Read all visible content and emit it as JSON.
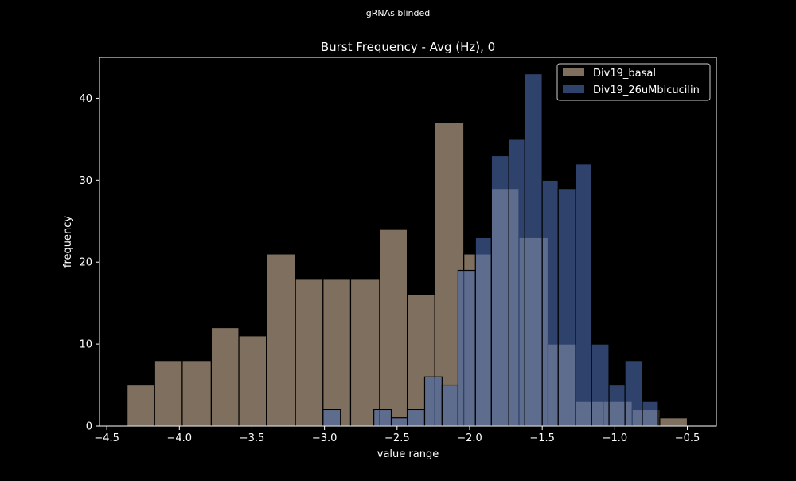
{
  "suptitle": "gRNAs blinded",
  "chart_data": {
    "type": "bar",
    "title": "Burst Frequency - Avg (Hz), 0",
    "xlabel": "value range",
    "ylabel": "frequency",
    "xlim": [
      -4.55,
      -0.3
    ],
    "ylim": [
      0,
      45
    ],
    "xticks": [
      -4.5,
      -4.0,
      -3.5,
      -3.0,
      -2.5,
      -2.0,
      -1.5,
      -1.0,
      -0.5
    ],
    "xtick_labels": [
      "−4.5",
      "−4.0",
      "−3.5",
      "−3.0",
      "−2.5",
      "−2.0",
      "−1.5",
      "−1.0",
      "−0.5"
    ],
    "yticks": [
      0,
      10,
      20,
      30,
      40
    ],
    "ytick_labels": [
      "0",
      "10",
      "20",
      "30",
      "40"
    ],
    "grid": false,
    "legend_position": "top-right",
    "series": [
      {
        "name": "Div19_basal",
        "color": "#8a7866",
        "opacity": 0.92,
        "bins": [
          {
            "x0": -4.36,
            "x1": -4.17,
            "count": 5
          },
          {
            "x0": -4.17,
            "x1": -3.98,
            "count": 8
          },
          {
            "x0": -3.98,
            "x1": -3.78,
            "count": 8
          },
          {
            "x0": -3.78,
            "x1": -3.59,
            "count": 12
          },
          {
            "x0": -3.59,
            "x1": -3.4,
            "count": 11
          },
          {
            "x0": -3.4,
            "x1": -3.2,
            "count": 21
          },
          {
            "x0": -3.2,
            "x1": -3.01,
            "count": 18
          },
          {
            "x0": -3.01,
            "x1": -2.82,
            "count": 18
          },
          {
            "x0": -2.82,
            "x1": -2.62,
            "count": 18
          },
          {
            "x0": -2.62,
            "x1": -2.43,
            "count": 24
          },
          {
            "x0": -2.43,
            "x1": -2.24,
            "count": 16
          },
          {
            "x0": -2.24,
            "x1": -2.04,
            "count": 37
          },
          {
            "x0": -2.04,
            "x1": -1.85,
            "count": 21
          },
          {
            "x0": -1.85,
            "x1": -1.66,
            "count": 29
          },
          {
            "x0": -1.66,
            "x1": -1.46,
            "count": 23
          },
          {
            "x0": -1.46,
            "x1": -1.27,
            "count": 10
          },
          {
            "x0": -1.27,
            "x1": -1.08,
            "count": 3
          },
          {
            "x0": -1.08,
            "x1": -0.88,
            "count": 3
          },
          {
            "x0": -0.88,
            "x1": -0.69,
            "count": 2
          },
          {
            "x0": -0.69,
            "x1": -0.5,
            "count": 1
          }
        ]
      },
      {
        "name": "Div19_26uMbicucilin",
        "color": "#4a6aad",
        "opacity": 0.62,
        "bins": [
          {
            "x0": -3.01,
            "x1": -2.89,
            "count": 2
          },
          {
            "x0": -2.66,
            "x1": -2.54,
            "count": 2
          },
          {
            "x0": -2.54,
            "x1": -2.43,
            "count": 1
          },
          {
            "x0": -2.43,
            "x1": -2.31,
            "count": 2
          },
          {
            "x0": -2.31,
            "x1": -2.19,
            "count": 6
          },
          {
            "x0": -2.19,
            "x1": -2.08,
            "count": 5
          },
          {
            "x0": -2.08,
            "x1": -1.96,
            "count": 19
          },
          {
            "x0": -1.96,
            "x1": -1.85,
            "count": 23
          },
          {
            "x0": -1.85,
            "x1": -1.73,
            "count": 33
          },
          {
            "x0": -1.73,
            "x1": -1.62,
            "count": 35
          },
          {
            "x0": -1.62,
            "x1": -1.5,
            "count": 43
          },
          {
            "x0": -1.5,
            "x1": -1.39,
            "count": 30
          },
          {
            "x0": -1.39,
            "x1": -1.27,
            "count": 29
          },
          {
            "x0": -1.27,
            "x1": -1.16,
            "count": 32
          },
          {
            "x0": -1.16,
            "x1": -1.04,
            "count": 10
          },
          {
            "x0": -1.04,
            "x1": -0.93,
            "count": 5
          },
          {
            "x0": -0.93,
            "x1": -0.81,
            "count": 8
          },
          {
            "x0": -0.81,
            "x1": -0.7,
            "count": 3
          }
        ]
      }
    ]
  }
}
